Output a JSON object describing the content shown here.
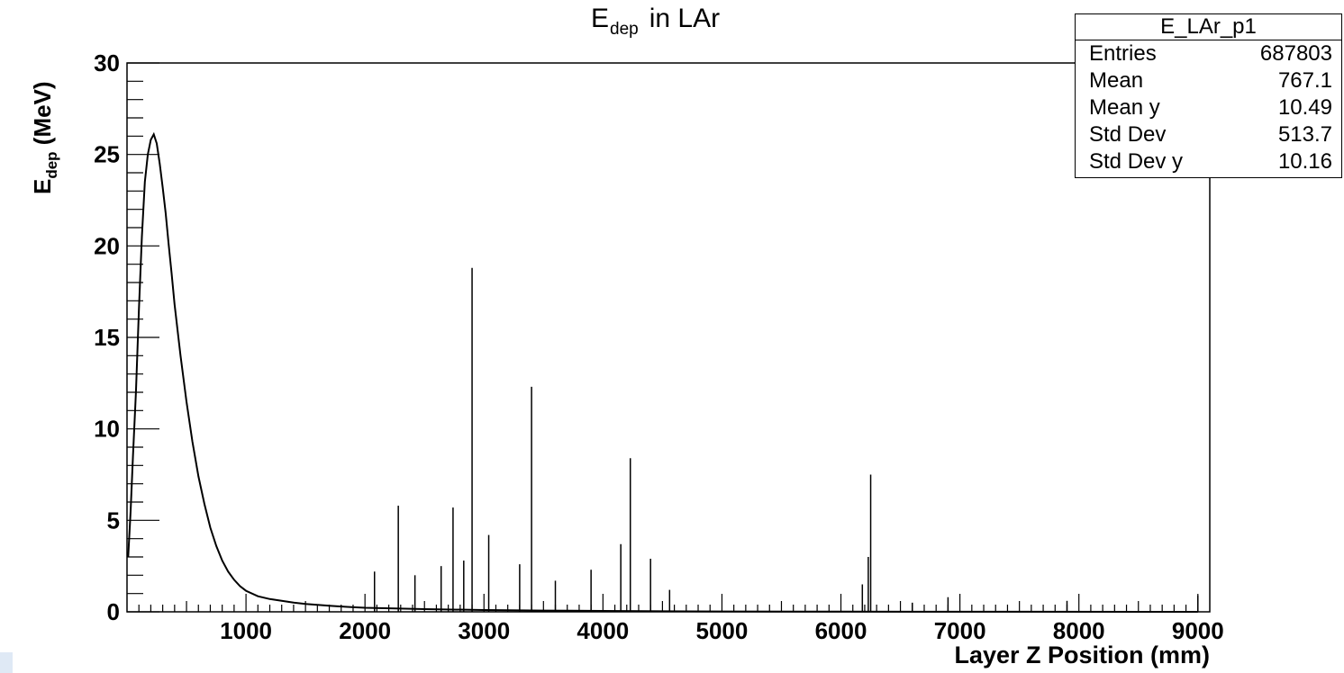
{
  "title": {
    "main": "E",
    "sub": "dep",
    "suffix": "in LAr"
  },
  "stats_box": {
    "name": "E_LAr_p1",
    "rows": [
      {
        "label": "Entries",
        "value": "687803"
      },
      {
        "label": "Mean",
        "value": "767.1"
      },
      {
        "label": "Mean y",
        "value": "10.49"
      },
      {
        "label": "Std Dev",
        "value": "513.7"
      },
      {
        "label": "Std Dev y",
        "value": "10.16"
      }
    ]
  },
  "chart_data": {
    "type": "line",
    "title": "E_dep in LAr",
    "xlabel": "Layer Z Position (mm)",
    "ylabel": "E_dep (MeV)",
    "xlim": [
      0,
      9100
    ],
    "ylim": [
      0,
      30
    ],
    "x_ticks": [
      1000,
      2000,
      3000,
      4000,
      5000,
      6000,
      7000,
      8000,
      9000
    ],
    "y_ticks": [
      0,
      5,
      10,
      15,
      20,
      25,
      30
    ],
    "grid": false,
    "series": [
      {
        "points": [
          [
            10,
            3.0
          ],
          [
            30,
            5.5
          ],
          [
            50,
            8.5
          ],
          [
            75,
            12
          ],
          [
            100,
            16.5
          ],
          [
            125,
            20.5
          ],
          [
            150,
            23.5
          ],
          [
            175,
            25.0
          ],
          [
            200,
            25.8
          ],
          [
            225,
            26.1
          ],
          [
            250,
            25.6
          ],
          [
            275,
            24.5
          ],
          [
            300,
            23.2
          ],
          [
            325,
            21.8
          ],
          [
            350,
            20.1
          ],
          [
            375,
            18.5
          ],
          [
            400,
            16.8
          ],
          [
            450,
            14.0
          ],
          [
            500,
            11.5
          ],
          [
            550,
            9.3
          ],
          [
            600,
            7.4
          ],
          [
            650,
            5.9
          ],
          [
            700,
            4.6
          ],
          [
            750,
            3.6
          ],
          [
            800,
            2.8
          ],
          [
            850,
            2.2
          ],
          [
            900,
            1.75
          ],
          [
            950,
            1.4
          ],
          [
            1000,
            1.15
          ],
          [
            1100,
            0.85
          ],
          [
            1200,
            0.7
          ],
          [
            1300,
            0.6
          ],
          [
            1400,
            0.5
          ],
          [
            1500,
            0.43
          ],
          [
            1600,
            0.38
          ],
          [
            1700,
            0.33
          ],
          [
            1800,
            0.29
          ],
          [
            1900,
            0.25
          ],
          [
            2000,
            0.22
          ],
          [
            2500,
            0.15
          ],
          [
            3000,
            0.1
          ],
          [
            3500,
            0.07
          ],
          [
            4000,
            0.05
          ],
          [
            4500,
            0.03
          ],
          [
            5000,
            0.02
          ],
          [
            6000,
            0.01
          ],
          [
            7000,
            0.005
          ],
          [
            9000,
            0.0
          ]
        ]
      }
    ],
    "spikes": [
      [
        2080,
        2.2
      ],
      [
        2280,
        5.8
      ],
      [
        2420,
        2.0
      ],
      [
        2640,
        2.5
      ],
      [
        2740,
        5.7
      ],
      [
        2830,
        2.8
      ],
      [
        2900,
        18.8
      ],
      [
        3040,
        4.2
      ],
      [
        3300,
        2.6
      ],
      [
        3400,
        12.3
      ],
      [
        3600,
        1.7
      ],
      [
        3900,
        2.3
      ],
      [
        4150,
        3.7
      ],
      [
        4230,
        8.4
      ],
      [
        4400,
        2.9
      ],
      [
        4560,
        1.2
      ],
      [
        6180,
        1.5
      ],
      [
        6230,
        3.0
      ],
      [
        6250,
        7.5
      ],
      [
        6600,
        0.5
      ],
      [
        6900,
        0.8
      ],
      [
        7900,
        0.6
      ],
      [
        9000,
        0.9
      ]
    ]
  }
}
